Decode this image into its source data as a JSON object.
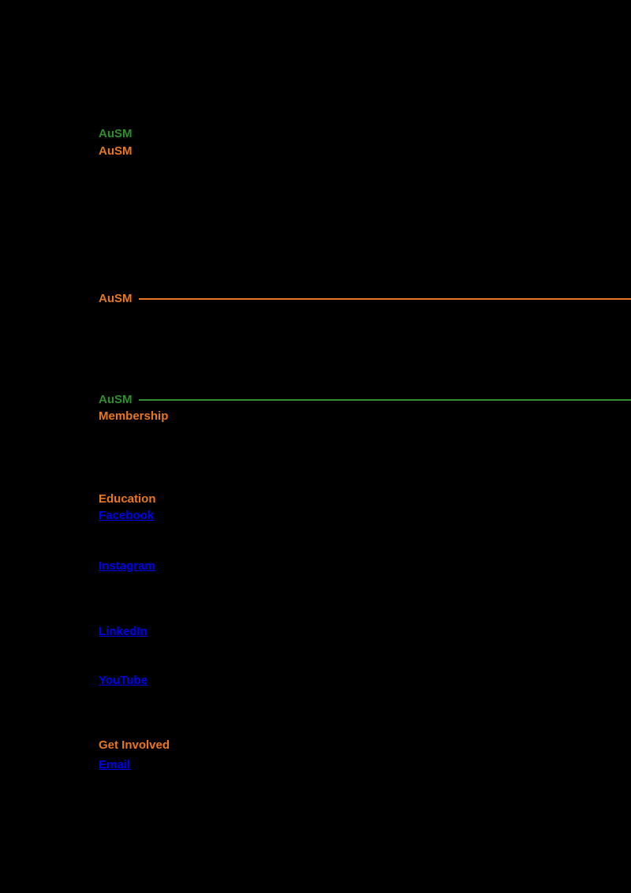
{
  "page": {
    "background": "#000000"
  },
  "colors": {
    "green": "#2f8f2f",
    "orange": "#e87722",
    "link_blue": "#0000ee"
  },
  "top": {
    "logo_link_primary": "AuSM",
    "logo_link_secondary": "AuSM"
  },
  "section1": {
    "title": "AuSM"
  },
  "section2": {
    "title": "AuSM",
    "subtitle": "Membership"
  },
  "list": {
    "label": "Education",
    "link1": "Facebook",
    "link2": "Instagram",
    "link3": "LinkedIn",
    "link4": "YouTube"
  },
  "footer": {
    "label": "Get Involved",
    "link": "Email"
  }
}
